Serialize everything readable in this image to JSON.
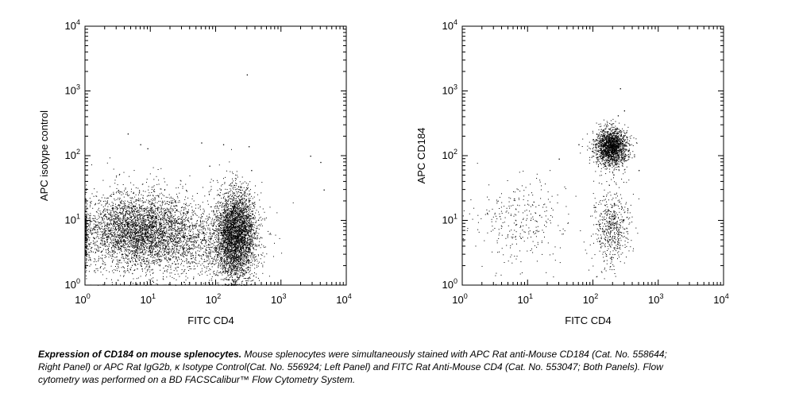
{
  "chart_data": [
    {
      "type": "scatter",
      "panel": "left",
      "xlabel": "FITC CD4",
      "ylabel": "APC isotype control",
      "xscale": "log",
      "yscale": "log",
      "xlim": [
        1,
        10000
      ],
      "ylim": [
        1,
        10000
      ],
      "tick_values": [
        1,
        10,
        100,
        1000,
        10000
      ],
      "tick_labels": [
        {
          "base": "10",
          "exp": "0"
        },
        {
          "base": "10",
          "exp": "1"
        },
        {
          "base": "10",
          "exp": "2"
        },
        {
          "base": "10",
          "exp": "3"
        },
        {
          "base": "10",
          "exp": "4"
        }
      ],
      "populations": [
        {
          "description": "CD4-negative cells",
          "x_center": 6,
          "y_center": 7,
          "x_spread_decades": 0.45,
          "y_spread_decades": 0.3,
          "count": 3500
        },
        {
          "description": "CD4-positive cells",
          "x_center": 200,
          "y_center": 6,
          "x_spread_decades": 0.15,
          "y_spread_decades": 0.35,
          "count": 3500
        },
        {
          "description": "dim background",
          "x_center": 40,
          "y_center": 5,
          "x_spread_decades": 0.5,
          "y_spread_decades": 0.3,
          "count": 1200
        }
      ],
      "outliers": [
        [
          4.5,
          220
        ],
        [
          9,
          130
        ],
        [
          7,
          150
        ],
        [
          60,
          160
        ],
        [
          130,
          150
        ],
        [
          320,
          140
        ],
        [
          2800,
          100
        ],
        [
          4000,
          80
        ],
        [
          4500,
          30
        ],
        [
          300,
          1800
        ],
        [
          80,
          70
        ],
        [
          350,
          60
        ]
      ]
    },
    {
      "type": "scatter",
      "panel": "right",
      "xlabel": "FITC CD4",
      "ylabel": "APC CD184",
      "xscale": "log",
      "yscale": "log",
      "xlim": [
        1,
        10000
      ],
      "ylim": [
        1,
        10000
      ],
      "tick_values": [
        1,
        10,
        100,
        1000,
        10000
      ],
      "tick_labels": [
        {
          "base": "10",
          "exp": "0"
        },
        {
          "base": "10",
          "exp": "1"
        },
        {
          "base": "10",
          "exp": "2"
        },
        {
          "base": "10",
          "exp": "3"
        },
        {
          "base": "10",
          "exp": "4"
        }
      ],
      "populations": [
        {
          "description": "CD4+ CD184+ cells",
          "x_center": 190,
          "y_center": 140,
          "x_spread_decades": 0.12,
          "y_spread_decades": 0.14,
          "count": 1800
        },
        {
          "description": "CD4+ CD184- cells",
          "x_center": 190,
          "y_center": 8,
          "x_spread_decades": 0.14,
          "y_spread_decades": 0.3,
          "count": 550
        },
        {
          "description": "CD4- cells",
          "x_center": 7,
          "y_center": 10,
          "x_spread_decades": 0.35,
          "y_spread_decades": 0.35,
          "count": 300
        }
      ],
      "outliers": [
        [
          260,
          1100
        ],
        [
          240,
          420
        ],
        [
          300,
          500
        ],
        [
          60,
          150
        ],
        [
          30,
          90
        ],
        [
          500,
          60
        ]
      ]
    }
  ],
  "caption": {
    "bold": "Expression of CD184 on mouse splenocytes.",
    "text": " Mouse splenocytes were simultaneously stained with APC Rat anti-Mouse CD184 (Cat. No. 558644; Right Panel) or APC Rat IgG2b, κ Isotype Control(Cat. No. 556924; Left Panel) and FITC Rat Anti-Mouse CD4 (Cat. No. 553047; Both Panels). Flow cytometry was performed on a BD FACSCalibur™ Flow Cytometry System."
  }
}
